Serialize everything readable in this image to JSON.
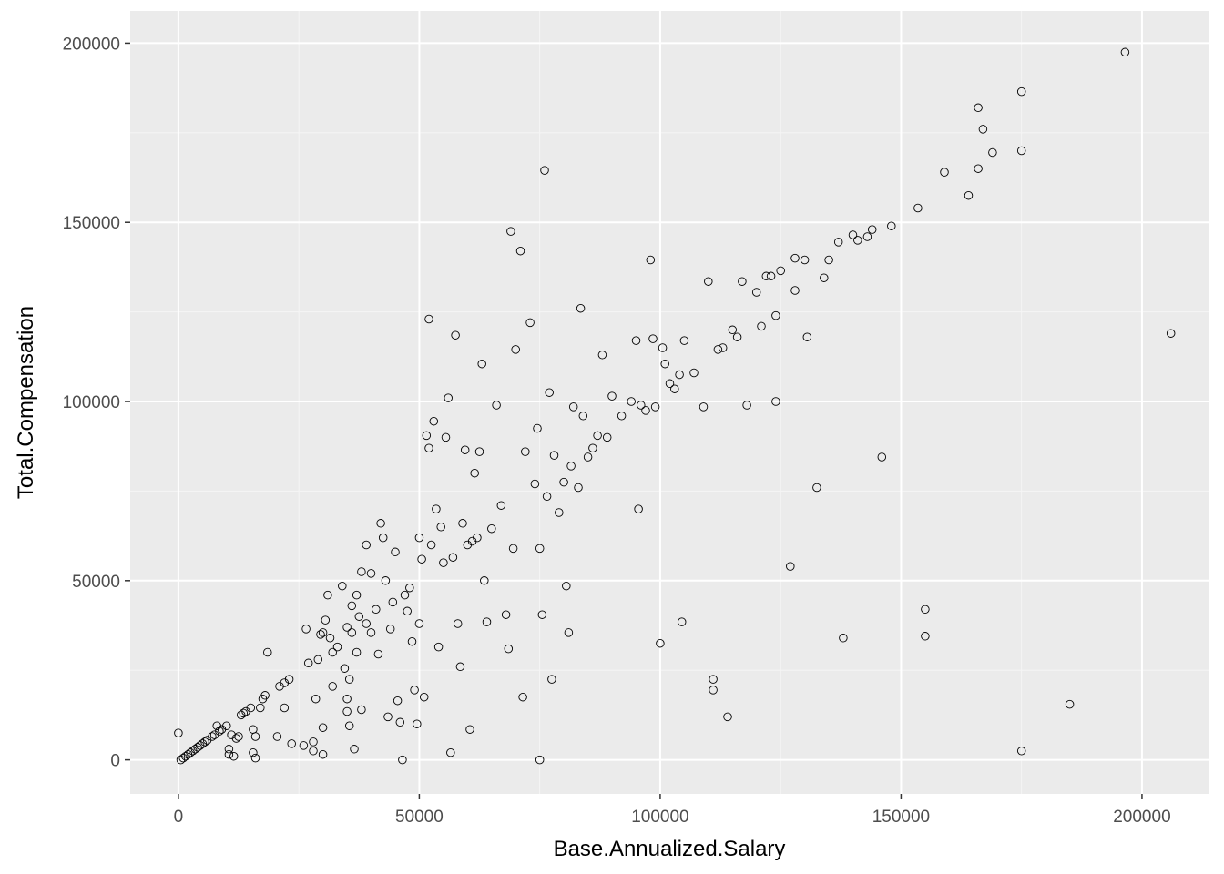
{
  "chart_data": {
    "type": "scatter",
    "title": "",
    "xlabel": "Base.Annualized.Salary",
    "ylabel": "Total.Compensation",
    "xlim": [
      -10000,
      214000
    ],
    "ylim": [
      -9500,
      209000
    ],
    "x_ticks": [
      0,
      50000,
      100000,
      150000,
      200000
    ],
    "y_ticks": [
      0,
      50000,
      100000,
      150000,
      200000
    ],
    "x_tick_labels": [
      "0",
      "50000",
      "100000",
      "150000",
      "200000"
    ],
    "y_tick_labels": [
      "0",
      "50000",
      "100000",
      "150000",
      "200000"
    ],
    "grid": true,
    "legend": "none",
    "colors": {
      "panel": "#ebebeb",
      "grid_major": "#ffffff",
      "point_stroke": "#000000",
      "tick_text": "#4d4d4d"
    },
    "points": [
      [
        0,
        7500
      ],
      [
        500,
        0
      ],
      [
        1000,
        500
      ],
      [
        1500,
        1000
      ],
      [
        2000,
        1500
      ],
      [
        2500,
        2000
      ],
      [
        3000,
        2500
      ],
      [
        3500,
        3000
      ],
      [
        4000,
        3500
      ],
      [
        4500,
        4000
      ],
      [
        5000,
        4500
      ],
      [
        5500,
        5000
      ],
      [
        6000,
        5500
      ],
      [
        7000,
        6500
      ],
      [
        7500,
        7000
      ],
      [
        8000,
        9500
      ],
      [
        8500,
        8000
      ],
      [
        9000,
        8500
      ],
      [
        10000,
        9500
      ],
      [
        10500,
        3000
      ],
      [
        10500,
        1500
      ],
      [
        11000,
        7000
      ],
      [
        11500,
        1000
      ],
      [
        12000,
        6000
      ],
      [
        12500,
        6500
      ],
      [
        13000,
        12500
      ],
      [
        13500,
        13000
      ],
      [
        14000,
        13500
      ],
      [
        15000,
        14500
      ],
      [
        15500,
        8500
      ],
      [
        15500,
        2000
      ],
      [
        16000,
        500
      ],
      [
        16000,
        6500
      ],
      [
        17000,
        14500
      ],
      [
        17500,
        17000
      ],
      [
        18000,
        18000
      ],
      [
        18500,
        30000
      ],
      [
        20500,
        6500
      ],
      [
        21000,
        20500
      ],
      [
        22000,
        21500
      ],
      [
        22000,
        14500
      ],
      [
        23000,
        22500
      ],
      [
        23500,
        4500
      ],
      [
        26000,
        4000
      ],
      [
        26500,
        36500
      ],
      [
        27000,
        27000
      ],
      [
        28000,
        5000
      ],
      [
        28000,
        2500
      ],
      [
        28500,
        17000
      ],
      [
        29000,
        28000
      ],
      [
        29500,
        35000
      ],
      [
        30000,
        35500
      ],
      [
        30000,
        9000
      ],
      [
        30000,
        1500
      ],
      [
        30500,
        39000
      ],
      [
        31000,
        46000
      ],
      [
        31500,
        34000
      ],
      [
        32000,
        30000
      ],
      [
        32000,
        20500
      ],
      [
        33000,
        31500
      ],
      [
        34000,
        48500
      ],
      [
        34500,
        25500
      ],
      [
        35000,
        37000
      ],
      [
        35000,
        17000
      ],
      [
        35000,
        13500
      ],
      [
        35500,
        22500
      ],
      [
        35500,
        9500
      ],
      [
        36000,
        43000
      ],
      [
        36000,
        35500
      ],
      [
        36500,
        3000
      ],
      [
        37000,
        46000
      ],
      [
        37000,
        30000
      ],
      [
        37500,
        40000
      ],
      [
        38000,
        52500
      ],
      [
        38000,
        14000
      ],
      [
        39000,
        60000
      ],
      [
        39000,
        38000
      ],
      [
        40000,
        35500
      ],
      [
        40000,
        52000
      ],
      [
        41000,
        42000
      ],
      [
        41500,
        29500
      ],
      [
        42000,
        66000
      ],
      [
        42500,
        62000
      ],
      [
        43000,
        50000
      ],
      [
        43500,
        12000
      ],
      [
        44000,
        36500
      ],
      [
        44500,
        44000
      ],
      [
        45000,
        58000
      ],
      [
        45500,
        16500
      ],
      [
        46000,
        10500
      ],
      [
        46500,
        0
      ],
      [
        47000,
        46000
      ],
      [
        47500,
        41500
      ],
      [
        48000,
        48000
      ],
      [
        48500,
        33000
      ],
      [
        49000,
        19500
      ],
      [
        49500,
        10000
      ],
      [
        50000,
        62000
      ],
      [
        50000,
        38000
      ],
      [
        50500,
        56000
      ],
      [
        51000,
        17500
      ],
      [
        51500,
        90500
      ],
      [
        52000,
        87000
      ],
      [
        52000,
        123000
      ],
      [
        52500,
        60000
      ],
      [
        53000,
        94500
      ],
      [
        53500,
        70000
      ],
      [
        54000,
        31500
      ],
      [
        54500,
        65000
      ],
      [
        55000,
        55000
      ],
      [
        55500,
        90000
      ],
      [
        56000,
        101000
      ],
      [
        56500,
        2000
      ],
      [
        57000,
        56500
      ],
      [
        57500,
        118500
      ],
      [
        58000,
        38000
      ],
      [
        58500,
        26000
      ],
      [
        59000,
        66000
      ],
      [
        59500,
        86500
      ],
      [
        60000,
        60000
      ],
      [
        60500,
        8500
      ],
      [
        61000,
        61000
      ],
      [
        61500,
        80000
      ],
      [
        62000,
        62000
      ],
      [
        62500,
        86000
      ],
      [
        63000,
        110500
      ],
      [
        63500,
        50000
      ],
      [
        64000,
        38500
      ],
      [
        65000,
        64500
      ],
      [
        66000,
        99000
      ],
      [
        67000,
        71000
      ],
      [
        68000,
        40500
      ],
      [
        68500,
        31000
      ],
      [
        69000,
        147500
      ],
      [
        69500,
        59000
      ],
      [
        70000,
        114500
      ],
      [
        71000,
        142000
      ],
      [
        71500,
        17500
      ],
      [
        72000,
        86000
      ],
      [
        73000,
        122000
      ],
      [
        74000,
        77000
      ],
      [
        74500,
        92500
      ],
      [
        75000,
        59000
      ],
      [
        75000,
        0
      ],
      [
        75500,
        40500
      ],
      [
        76000,
        164500
      ],
      [
        76500,
        73500
      ],
      [
        77000,
        102500
      ],
      [
        77500,
        22500
      ],
      [
        78000,
        85000
      ],
      [
        79000,
        69000
      ],
      [
        80000,
        77500
      ],
      [
        80500,
        48500
      ],
      [
        81000,
        35500
      ],
      [
        81500,
        82000
      ],
      [
        82000,
        98500
      ],
      [
        83000,
        76000
      ],
      [
        83500,
        126000
      ],
      [
        84000,
        96000
      ],
      [
        85000,
        84500
      ],
      [
        86000,
        87000
      ],
      [
        87000,
        90500
      ],
      [
        88000,
        113000
      ],
      [
        89000,
        90000
      ],
      [
        90000,
        101500
      ],
      [
        92000,
        96000
      ],
      [
        94000,
        100000
      ],
      [
        95000,
        117000
      ],
      [
        95500,
        70000
      ],
      [
        96000,
        99000
      ],
      [
        97000,
        97500
      ],
      [
        98000,
        139500
      ],
      [
        98500,
        117500
      ],
      [
        99000,
        98500
      ],
      [
        100000,
        32500
      ],
      [
        100500,
        115000
      ],
      [
        101000,
        110500
      ],
      [
        102000,
        105000
      ],
      [
        103000,
        103500
      ],
      [
        104000,
        107500
      ],
      [
        104500,
        38500
      ],
      [
        105000,
        117000
      ],
      [
        107000,
        108000
      ],
      [
        109000,
        98500
      ],
      [
        110000,
        133500
      ],
      [
        111000,
        22500
      ],
      [
        111000,
        19500
      ],
      [
        112000,
        114500
      ],
      [
        113000,
        115000
      ],
      [
        114000,
        12000
      ],
      [
        115000,
        120000
      ],
      [
        116000,
        118000
      ],
      [
        117000,
        133500
      ],
      [
        118000,
        99000
      ],
      [
        120000,
        130500
      ],
      [
        121000,
        121000
      ],
      [
        122000,
        135000
      ],
      [
        123000,
        135000
      ],
      [
        124000,
        124000
      ],
      [
        124000,
        100000
      ],
      [
        125000,
        136500
      ],
      [
        127000,
        54000
      ],
      [
        128000,
        140000
      ],
      [
        128000,
        131000
      ],
      [
        130000,
        139500
      ],
      [
        130500,
        118000
      ],
      [
        132500,
        76000
      ],
      [
        134000,
        134500
      ],
      [
        135000,
        139500
      ],
      [
        137000,
        144500
      ],
      [
        138000,
        34000
      ],
      [
        140000,
        146500
      ],
      [
        141000,
        145000
      ],
      [
        143000,
        146000
      ],
      [
        144000,
        148000
      ],
      [
        146000,
        84500
      ],
      [
        148000,
        149000
      ],
      [
        153500,
        154000
      ],
      [
        155000,
        42000
      ],
      [
        155000,
        34500
      ],
      [
        159000,
        164000
      ],
      [
        164000,
        157500
      ],
      [
        166000,
        165000
      ],
      [
        166000,
        182000
      ],
      [
        167000,
        176000
      ],
      [
        169000,
        169500
      ],
      [
        175000,
        170000
      ],
      [
        175000,
        186500
      ],
      [
        175000,
        2500
      ],
      [
        185000,
        15500
      ],
      [
        196500,
        197500
      ],
      [
        206000,
        119000
      ]
    ]
  }
}
